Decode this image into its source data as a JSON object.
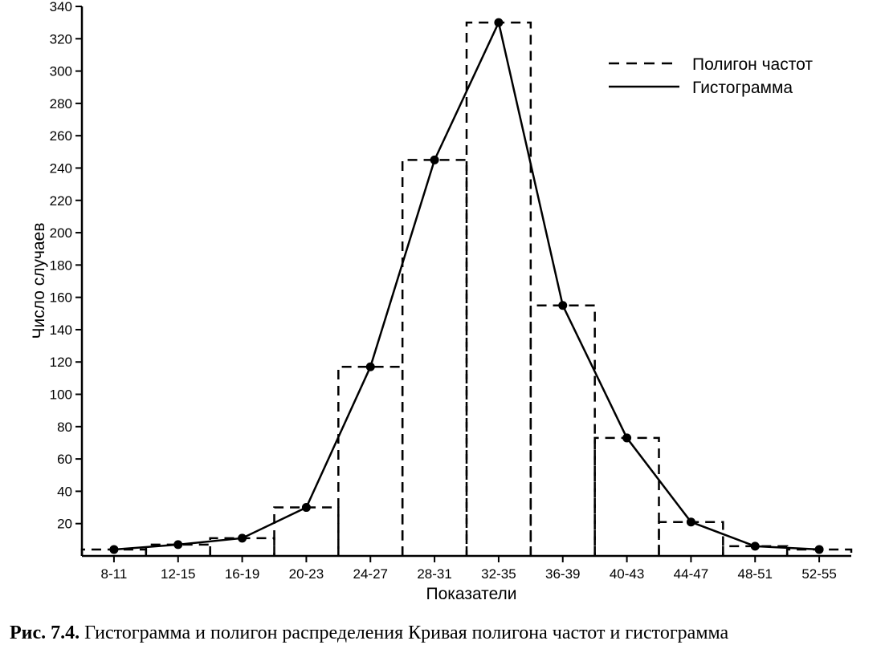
{
  "chart_data": {
    "type": "bar",
    "xlabel": "Показатели",
    "ylabel": "Число случаев",
    "categories": [
      "8-11",
      "12-15",
      "16-19",
      "20-23",
      "24-27",
      "28-31",
      "32-35",
      "36-39",
      "40-43",
      "44-47",
      "48-51",
      "52-55"
    ],
    "series": [
      {
        "name": "Полигон частот",
        "style": "dashed-histogram",
        "values": [
          4,
          7,
          11,
          30,
          117,
          245,
          330,
          155,
          73,
          21,
          6,
          4
        ]
      },
      {
        "name": "Гистограмма",
        "style": "solid-line-with-markers",
        "values": [
          4,
          7,
          11,
          30,
          117,
          245,
          330,
          155,
          73,
          21,
          6,
          4
        ]
      }
    ],
    "ylim": [
      0,
      340
    ],
    "yticks": [
      20,
      40,
      60,
      80,
      100,
      120,
      140,
      160,
      180,
      200,
      220,
      240,
      260,
      280,
      300,
      320,
      340
    ],
    "grid": false,
    "legend_position": "top-right",
    "colors": {
      "line": "#000000",
      "background": "#ffffff"
    }
  },
  "caption": {
    "label": "Рис. 7.4.",
    "text": " Гистограмма и полигон распределения  Кривая полигона частот и гистограмма"
  }
}
